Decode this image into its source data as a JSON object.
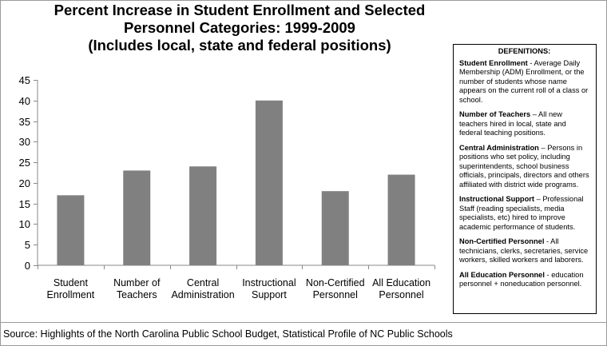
{
  "title_lines": [
    "Percent Increase in Student Enrollment and Selected",
    "Personnel Categories: 1999-2009",
    "(Includes local, state and federal positions)"
  ],
  "chart_data": {
    "type": "bar",
    "title": "Percent Increase in Student Enrollment and Selected Personnel Categories: 1999-2009 (Includes local, state and federal positions)",
    "categories": [
      [
        "Student",
        "Enrollment"
      ],
      [
        "Number of",
        "Teachers"
      ],
      [
        "Central",
        "Administration"
      ],
      [
        "Instructional",
        "Support"
      ],
      [
        "Non-Certified",
        "Personnel"
      ],
      [
        "All Education",
        "Personnel"
      ]
    ],
    "values": [
      17,
      23,
      24,
      40,
      18,
      22
    ],
    "yticks": [
      0,
      5,
      10,
      15,
      20,
      25,
      30,
      35,
      40,
      45
    ],
    "ylim": [
      0,
      45
    ],
    "grid": false,
    "bar_color": "#808080"
  },
  "definitions": {
    "heading": "DEFENITIONS:",
    "items": [
      {
        "term": "Student Enrollment",
        "sep": " - ",
        "text": "Average Daily Membership (ADM) Enrollment, or the number of students whose name appears on the current roll of a class or school."
      },
      {
        "term": "Number of Teachers",
        "sep": " – ",
        "text": "All new teachers hired in local, state and federal teaching positions."
      },
      {
        "term": "Central Administration",
        "sep": " – ",
        "text": "Persons in positions who set policy, including superintendents, school business officials, principals, directors and others affiliated with district wide programs."
      },
      {
        "term": "Instructional Support",
        "sep": " – ",
        "text": "Professional Staff (reading specialists, media specialists, etc) hired to improve academic performance of students."
      },
      {
        "term": "Non-Certified Personnel",
        "sep": " - ",
        "text": "All technicians, clerks, secretaries, service workers, skilled workers and laborers."
      },
      {
        "term": "All Education Personnel",
        "sep": " - ",
        "text": "education personnel + noneducation personnel."
      }
    ]
  },
  "source": "Source:  Highlights of the North Carolina Public School Budget, Statistical Profile of NC Public Schools"
}
